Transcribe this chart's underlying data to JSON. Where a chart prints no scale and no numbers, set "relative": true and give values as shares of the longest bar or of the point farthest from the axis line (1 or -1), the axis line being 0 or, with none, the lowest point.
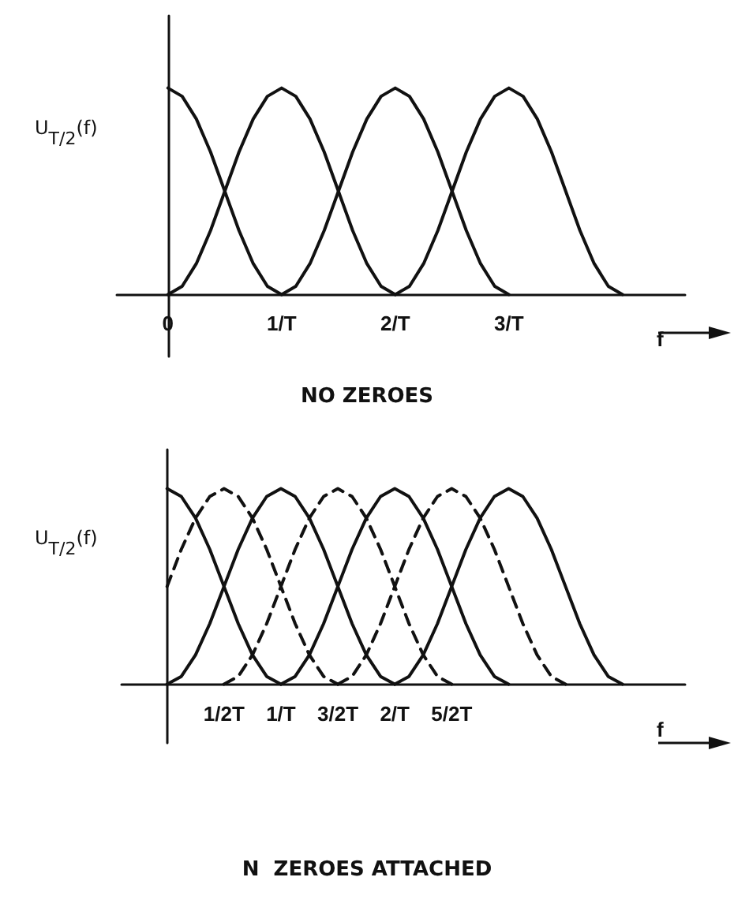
{
  "chart_data": [
    {
      "type": "line",
      "title": "NO ZEROES",
      "xlabel": "f",
      "ylabel": "U$_{T/2}$(f)",
      "relative": true,
      "marker": "none",
      "line_style": "solid",
      "xlim": [
        -0.45,
        4.55
      ],
      "xticks": [
        0,
        {
          "value": 1,
          "label": "1/T"
        },
        {
          "value": 2,
          "label": "2/T"
        },
        {
          "value": 3,
          "label": "3/T"
        }
      ],
      "series": [
        {
          "color": "#111111",
          "x": [
            0,
            0.125,
            0.25,
            0.375,
            0.5,
            0.625,
            0.75,
            0.875,
            1
          ],
          "values": [
            1,
            0.96,
            0.85,
            0.69,
            0.5,
            0.31,
            0.15,
            0.04,
            0
          ]
        },
        {
          "color": "#111111",
          "x": [
            0,
            0.125,
            0.25,
            0.375,
            0.5,
            0.625,
            0.75,
            0.875,
            1,
            1.125,
            1.25,
            1.375,
            1.5,
            1.625,
            1.75,
            1.875,
            2
          ],
          "values": [
            0,
            0.04,
            0.15,
            0.31,
            0.5,
            0.69,
            0.85,
            0.96,
            1,
            0.96,
            0.85,
            0.69,
            0.5,
            0.31,
            0.15,
            0.04,
            0
          ]
        },
        {
          "color": "#111111",
          "x": [
            1,
            1.125,
            1.25,
            1.375,
            1.5,
            1.625,
            1.75,
            1.875,
            2,
            2.125,
            2.25,
            2.375,
            2.5,
            2.625,
            2.75,
            2.875,
            3
          ],
          "values": [
            0,
            0.04,
            0.15,
            0.31,
            0.5,
            0.69,
            0.85,
            0.96,
            1,
            0.96,
            0.85,
            0.69,
            0.5,
            0.31,
            0.15,
            0.04,
            0
          ]
        },
        {
          "color": "#111111",
          "x": [
            2,
            2.125,
            2.25,
            2.375,
            2.5,
            2.625,
            2.75,
            2.875,
            3,
            3.125,
            3.25,
            3.375,
            3.5,
            3.625,
            3.75,
            3.875,
            4
          ],
          "values": [
            0,
            0.04,
            0.15,
            0.31,
            0.5,
            0.69,
            0.85,
            0.96,
            1,
            0.96,
            0.85,
            0.69,
            0.5,
            0.31,
            0.15,
            0.04,
            0
          ]
        }
      ]
    },
    {
      "type": "line",
      "title": "N  ZEROES ATTACHED",
      "xlabel": "f",
      "ylabel": "U$_{T/2}$(f)",
      "relative": true,
      "marker": "none",
      "xlim": [
        -0.4,
        4.55
      ],
      "xticks": [
        {
          "value": 0.5,
          "label": "1/2T"
        },
        {
          "value": 1,
          "label": "1/T"
        },
        {
          "value": 1.5,
          "label": "3/2T"
        },
        {
          "value": 2,
          "label": "2/T"
        },
        {
          "value": 2.5,
          "label": "5/2T"
        }
      ],
      "series": [
        {
          "color": "#111111",
          "line_style": "solid",
          "x": [
            0,
            0.125,
            0.25,
            0.375,
            0.5,
            0.625,
            0.75,
            0.875,
            1
          ],
          "values": [
            1,
            0.96,
            0.85,
            0.69,
            0.5,
            0.31,
            0.15,
            0.04,
            0
          ]
        },
        {
          "color": "#111111",
          "line_style": "solid",
          "x": [
            0,
            0.125,
            0.25,
            0.375,
            0.5,
            0.625,
            0.75,
            0.875,
            1,
            1.125,
            1.25,
            1.375,
            1.5,
            1.625,
            1.75,
            1.875,
            2
          ],
          "values": [
            0,
            0.04,
            0.15,
            0.31,
            0.5,
            0.69,
            0.85,
            0.96,
            1,
            0.96,
            0.85,
            0.69,
            0.5,
            0.31,
            0.15,
            0.04,
            0
          ]
        },
        {
          "color": "#111111",
          "line_style": "solid",
          "x": [
            1,
            1.125,
            1.25,
            1.375,
            1.5,
            1.625,
            1.75,
            1.875,
            2,
            2.125,
            2.25,
            2.375,
            2.5,
            2.625,
            2.75,
            2.875,
            3
          ],
          "values": [
            0,
            0.04,
            0.15,
            0.31,
            0.5,
            0.69,
            0.85,
            0.96,
            1,
            0.96,
            0.85,
            0.69,
            0.5,
            0.31,
            0.15,
            0.04,
            0
          ]
        },
        {
          "color": "#111111",
          "line_style": "solid",
          "x": [
            2,
            2.125,
            2.25,
            2.375,
            2.5,
            2.625,
            2.75,
            2.875,
            3,
            3.125,
            3.25,
            3.375,
            3.5,
            3.625,
            3.75,
            3.875,
            4
          ],
          "values": [
            0,
            0.04,
            0.15,
            0.31,
            0.5,
            0.69,
            0.85,
            0.96,
            1,
            0.96,
            0.85,
            0.69,
            0.5,
            0.31,
            0.15,
            0.04,
            0
          ]
        },
        {
          "color": "#111111",
          "line_style": "dashed",
          "x": [
            0,
            0.125,
            0.25,
            0.375,
            0.5,
            0.625,
            0.75,
            0.875,
            1,
            1.125,
            1.25,
            1.375,
            1.5
          ],
          "values": [
            0.5,
            0.69,
            0.85,
            0.96,
            1,
            0.96,
            0.85,
            0.69,
            0.5,
            0.31,
            0.15,
            0.04,
            0
          ]
        },
        {
          "color": "#111111",
          "line_style": "dashed",
          "x": [
            0.5,
            0.625,
            0.75,
            0.875,
            1,
            1.125,
            1.25,
            1.375,
            1.5,
            1.625,
            1.75,
            1.875,
            2,
            2.125,
            2.25,
            2.375,
            2.5
          ],
          "values": [
            0,
            0.04,
            0.15,
            0.31,
            0.5,
            0.69,
            0.85,
            0.96,
            1,
            0.96,
            0.85,
            0.69,
            0.5,
            0.31,
            0.15,
            0.04,
            0
          ]
        },
        {
          "color": "#111111",
          "line_style": "dashed",
          "x": [
            1.5,
            1.625,
            1.75,
            1.875,
            2,
            2.125,
            2.25,
            2.375,
            2.5,
            2.625,
            2.75,
            2.875,
            3,
            3.125,
            3.25,
            3.375,
            3.5
          ],
          "values": [
            0,
            0.04,
            0.15,
            0.31,
            0.5,
            0.69,
            0.85,
            0.96,
            1,
            0.96,
            0.85,
            0.69,
            0.5,
            0.31,
            0.15,
            0.04,
            0
          ]
        }
      ]
    }
  ]
}
